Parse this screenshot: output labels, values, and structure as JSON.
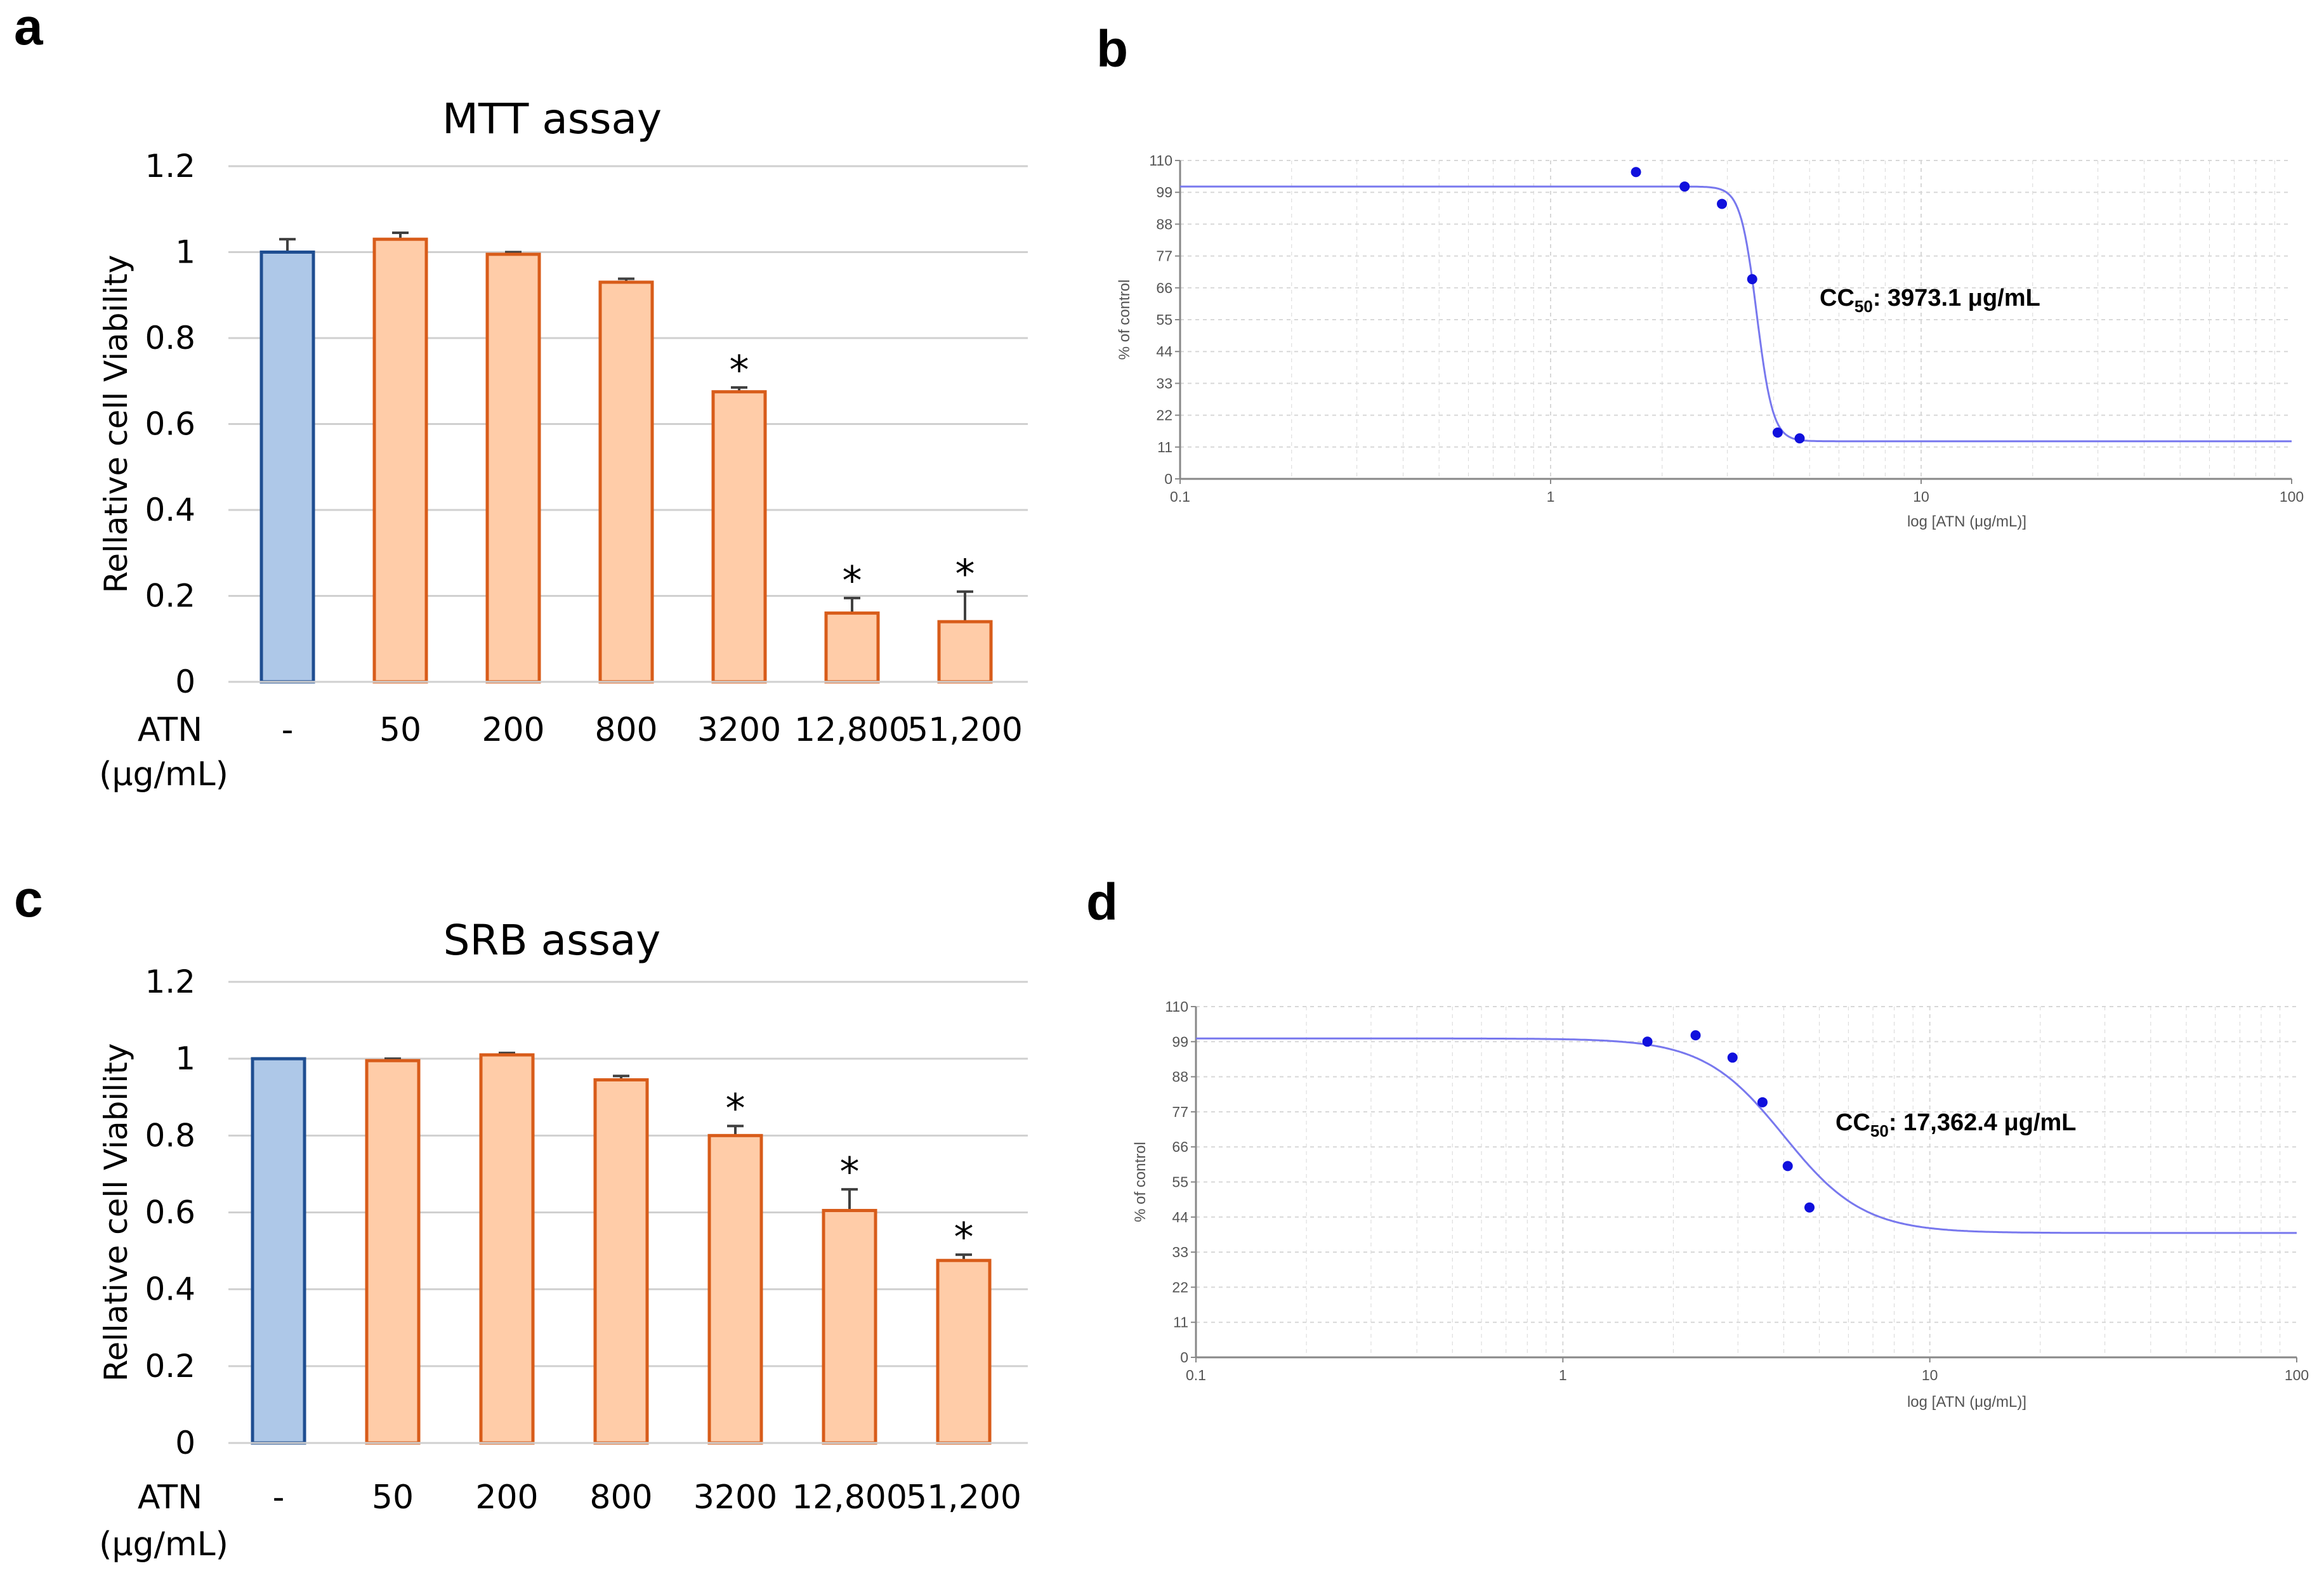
{
  "chart_data": [
    {
      "id": "a",
      "panel_label": "a",
      "type": "bar",
      "title": "MTT assay",
      "ylabel": "Rellative cell Viability",
      "xlabel_line1": "ATN",
      "xlabel_line2": "(μg/mL)",
      "ylim": [
        0,
        1.2
      ],
      "yticks": [
        "0",
        "0.2",
        "0.4",
        "0.6",
        "0.8",
        "1",
        "1.2"
      ],
      "categories": [
        "-",
        "50",
        "200",
        "800",
        "3200",
        "12,800",
        "51,200"
      ],
      "values": [
        1.0,
        1.03,
        0.995,
        0.93,
        0.675,
        0.16,
        0.14
      ],
      "errors": [
        0.03,
        0.015,
        0.005,
        0.008,
        0.01,
        0.035,
        0.07
      ],
      "significant": [
        false,
        false,
        false,
        false,
        true,
        true,
        true
      ],
      "star_symbol": "*",
      "colors": {
        "control_fill": "#aec8e8",
        "control_edge": "#1f4e91",
        "treated_fill": "#ffcca8",
        "treated_edge": "#d85c1a",
        "grid": "#d0d0d0"
      }
    },
    {
      "id": "b",
      "panel_label": "b",
      "type": "line",
      "subtype": "dose-response (log x)",
      "ylabel": "% of control",
      "xlabel": "log [ATN (μg/mL)]",
      "xscale": "log",
      "xlim": [
        0.1,
        100
      ],
      "xticks": [
        "0.1",
        "1",
        "10",
        "100"
      ],
      "ylim": [
        0,
        110
      ],
      "yticks": [
        "0",
        "11",
        "22",
        "33",
        "44",
        "55",
        "66",
        "77",
        "88",
        "99",
        "110"
      ],
      "points_x": [
        1.7,
        2.3,
        2.9,
        3.5,
        4.1,
        4.7
      ],
      "points_y": [
        106,
        101,
        95,
        69,
        16,
        14
      ],
      "fit": {
        "top": 101,
        "bottom": 13,
        "ic50": 3.6,
        "hill": 20,
        "x_end": 100
      },
      "annotation_prefix": "CC",
      "annotation_sub": "50",
      "annotation_text": ": 3973.1 μg/mL",
      "colors": {
        "line": "#7878ee",
        "point": "#1010dd",
        "grid": "#d8d8d8",
        "axis": "#888888"
      }
    },
    {
      "id": "c",
      "panel_label": "c",
      "type": "bar",
      "title": "SRB assay",
      "ylabel": "Rellative cell Viability",
      "xlabel_line1": "ATN",
      "xlabel_line2": "(μg/mL)",
      "ylim": [
        0,
        1.2
      ],
      "yticks": [
        "0",
        "0.2",
        "0.4",
        "0.6",
        "0.8",
        "1",
        "1.2"
      ],
      "categories": [
        "-",
        "50",
        "200",
        "800",
        "3200",
        "12,800",
        "51,200"
      ],
      "values": [
        1.0,
        0.995,
        1.01,
        0.945,
        0.8,
        0.605,
        0.475
      ],
      "errors": [
        0.0,
        0.005,
        0.005,
        0.01,
        0.025,
        0.055,
        0.015
      ],
      "significant": [
        false,
        false,
        false,
        false,
        true,
        true,
        true
      ],
      "star_symbol": "*",
      "colors": {
        "control_fill": "#aec8e8",
        "control_edge": "#1f4e91",
        "treated_fill": "#ffcca8",
        "treated_edge": "#d85c1a",
        "grid": "#d0d0d0"
      }
    },
    {
      "id": "d",
      "panel_label": "d",
      "type": "line",
      "subtype": "dose-response (log x)",
      "ylabel": "% of control",
      "xlabel": "log [ATN (μg/mL)]",
      "xscale": "log",
      "xlim": [
        0.1,
        100
      ],
      "xticks": [
        "0.1",
        "1",
        "10",
        "100"
      ],
      "ylim": [
        0,
        110
      ],
      "yticks": [
        "0",
        "11",
        "22",
        "33",
        "44",
        "55",
        "66",
        "77",
        "88",
        "99",
        "110"
      ],
      "points_x": [
        1.7,
        2.3,
        2.9,
        3.5,
        4.1,
        4.7
      ],
      "points_y": [
        99,
        101,
        94,
        80,
        60,
        47
      ],
      "fit": {
        "top": 100,
        "bottom": 39,
        "ic50": 4.0,
        "hill": 4,
        "x_end": 100
      },
      "annotation_prefix": "CC",
      "annotation_sub": "50",
      "annotation_text": ": 17,362.4 μg/mL",
      "colors": {
        "line": "#7878ee",
        "point": "#1010dd",
        "grid": "#d8d8d8",
        "axis": "#888888"
      }
    }
  ]
}
